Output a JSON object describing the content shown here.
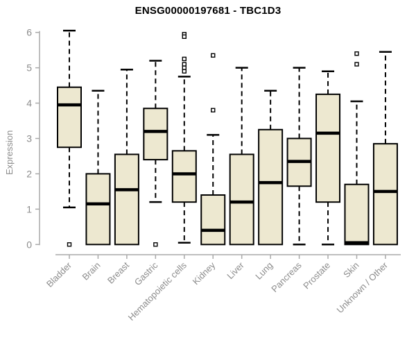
{
  "title": "ENSG00000197681 - TBC1D3",
  "colors": {
    "box_fill": "#EDE8D0",
    "box_stroke": "#000000",
    "median": "#000000",
    "axis_line": "#A9A9A9",
    "tick_label": "#8C8C8C",
    "title_color": "#000000",
    "background": "#FFFFFF",
    "outlier_fill": "#FFFFFF"
  },
  "chart_data": {
    "type": "boxplot",
    "title": "ENSG00000197681 - TBC1D3",
    "xlabel": "",
    "ylabel": "Expression",
    "ylim": [
      0,
      6
    ],
    "yticks": [
      0,
      1,
      2,
      3,
      4,
      5,
      6
    ],
    "grid": "off",
    "legend": "none",
    "categories": [
      "Bladder",
      "Brain",
      "Breast",
      "Gastric",
      "Hematopoietic cells",
      "Kidney",
      "Liver",
      "Lung",
      "Pancreas",
      "Prostate",
      "Skin",
      "Unknown / Other"
    ],
    "boxes": [
      {
        "category": "Bladder",
        "whisker_low": 1.05,
        "q1": 2.75,
        "median": 3.95,
        "q3": 4.45,
        "whisker_high": 6.05,
        "outliers": [
          0
        ]
      },
      {
        "category": "Brain",
        "whisker_low": 0,
        "q1": 0,
        "median": 1.15,
        "q3": 2.0,
        "whisker_high": 4.35,
        "outliers": []
      },
      {
        "category": "Breast",
        "whisker_low": 0,
        "q1": 0,
        "median": 1.55,
        "q3": 2.55,
        "whisker_high": 4.95,
        "outliers": []
      },
      {
        "category": "Gastric",
        "whisker_low": 1.2,
        "q1": 2.4,
        "median": 3.2,
        "q3": 3.85,
        "whisker_high": 5.2,
        "outliers": [
          0
        ]
      },
      {
        "category": "Hematopoietic cells",
        "whisker_low": 0.05,
        "q1": 1.2,
        "median": 2.0,
        "q3": 2.65,
        "whisker_high": 4.75,
        "outliers": [
          5.95,
          5.88,
          5.25,
          5.1,
          5.0,
          4.9
        ]
      },
      {
        "category": "Kidney",
        "whisker_low": 0,
        "q1": 0,
        "median": 0.4,
        "q3": 1.4,
        "whisker_high": 3.1,
        "outliers": [
          5.35,
          3.8
        ]
      },
      {
        "category": "Liver",
        "whisker_low": 0,
        "q1": 0,
        "median": 1.2,
        "q3": 2.55,
        "whisker_high": 5.0,
        "outliers": []
      },
      {
        "category": "Lung",
        "whisker_low": 0,
        "q1": 0,
        "median": 1.75,
        "q3": 3.25,
        "whisker_high": 4.35,
        "outliers": []
      },
      {
        "category": "Pancreas",
        "whisker_low": 0,
        "q1": 1.65,
        "median": 2.35,
        "q3": 3.0,
        "whisker_high": 5.0,
        "outliers": []
      },
      {
        "category": "Prostate",
        "whisker_low": 0,
        "q1": 1.2,
        "median": 3.15,
        "q3": 4.25,
        "whisker_high": 4.9,
        "outliers": []
      },
      {
        "category": "Skin",
        "whisker_low": 0,
        "q1": 0,
        "median": 0.05,
        "q3": 1.7,
        "whisker_high": 4.05,
        "outliers": [
          5.4,
          5.1
        ]
      },
      {
        "category": "Unknown / Other",
        "whisker_low": 0,
        "q1": 0,
        "median": 1.5,
        "q3": 2.85,
        "whisker_high": 5.45,
        "outliers": []
      }
    ]
  }
}
